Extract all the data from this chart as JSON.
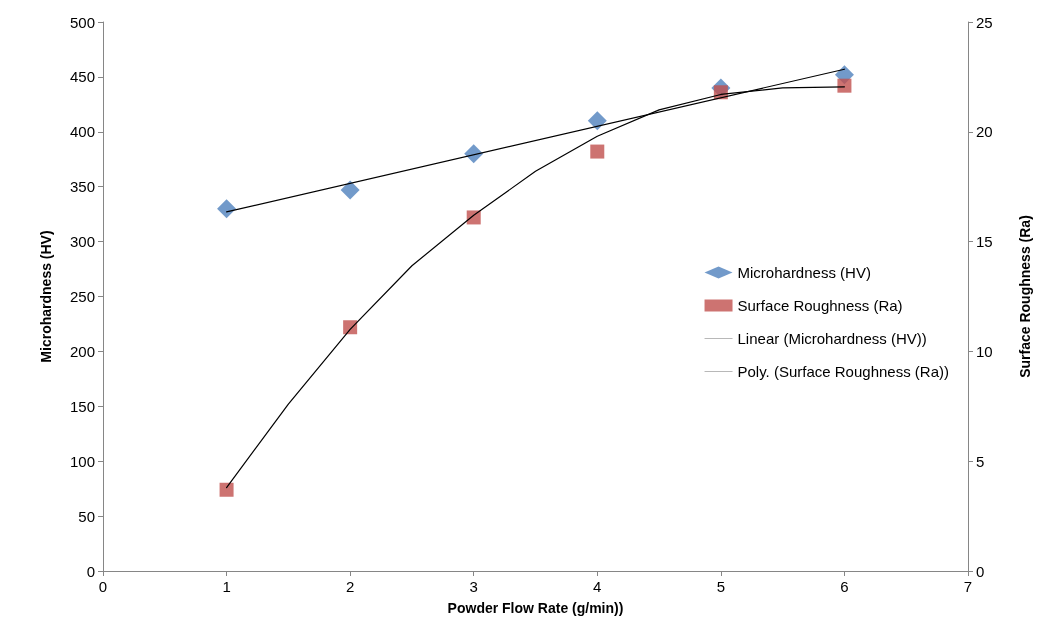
{
  "chart_data": {
    "type": "scatter",
    "xlabel": "Powder Flow Rate (g/min))",
    "ylabel": "Microhardness (HV)",
    "y2label": "Surface Roughness (Ra)",
    "xlim": [
      0,
      7
    ],
    "xticks": [
      0,
      1,
      2,
      3,
      4,
      5,
      6,
      7
    ],
    "ylim": [
      0,
      500
    ],
    "yticks": [
      0,
      50,
      100,
      150,
      200,
      250,
      300,
      350,
      400,
      450,
      500
    ],
    "y2lim": [
      0,
      25
    ],
    "y2ticks": [
      0,
      5,
      10,
      15,
      20,
      25
    ],
    "grid": false,
    "legend": "right",
    "series": [
      {
        "name": "Microhardness (HV)",
        "marker": "diamond",
        "color": "#4f81bd",
        "x": [
          1,
          2,
          3,
          4,
          5,
          6
        ],
        "values": [
          330,
          347,
          380,
          410,
          440,
          452
        ]
      },
      {
        "name": "Surface Roughness (Ra)",
        "marker": "square",
        "color": "#c0504d",
        "axis": "y2",
        "x": [
          1,
          2,
          3,
          4,
          5,
          6
        ],
        "values": [
          3.7,
          11.1,
          16.1,
          19.1,
          21.8,
          22.1
        ]
      },
      {
        "name": "Linear (Microhardness (HV))",
        "type": "line",
        "marker": "none",
        "line_style": "solid",
        "color": "#000000",
        "x": [
          1,
          6
        ],
        "values": [
          327,
          457
        ]
      },
      {
        "name": "Poly. (Surface Roughness (Ra))",
        "type": "line",
        "marker": "none",
        "line_style": "solid",
        "color": "#000000",
        "axis": "y2",
        "x": [
          1,
          1.5,
          2,
          2.5,
          3,
          3.5,
          4,
          4.5,
          5,
          5.5,
          6
        ],
        "values": [
          3.8,
          7.6,
          11.0,
          13.9,
          16.2,
          18.2,
          19.8,
          21.0,
          21.7,
          22.0,
          22.05
        ]
      }
    ]
  }
}
